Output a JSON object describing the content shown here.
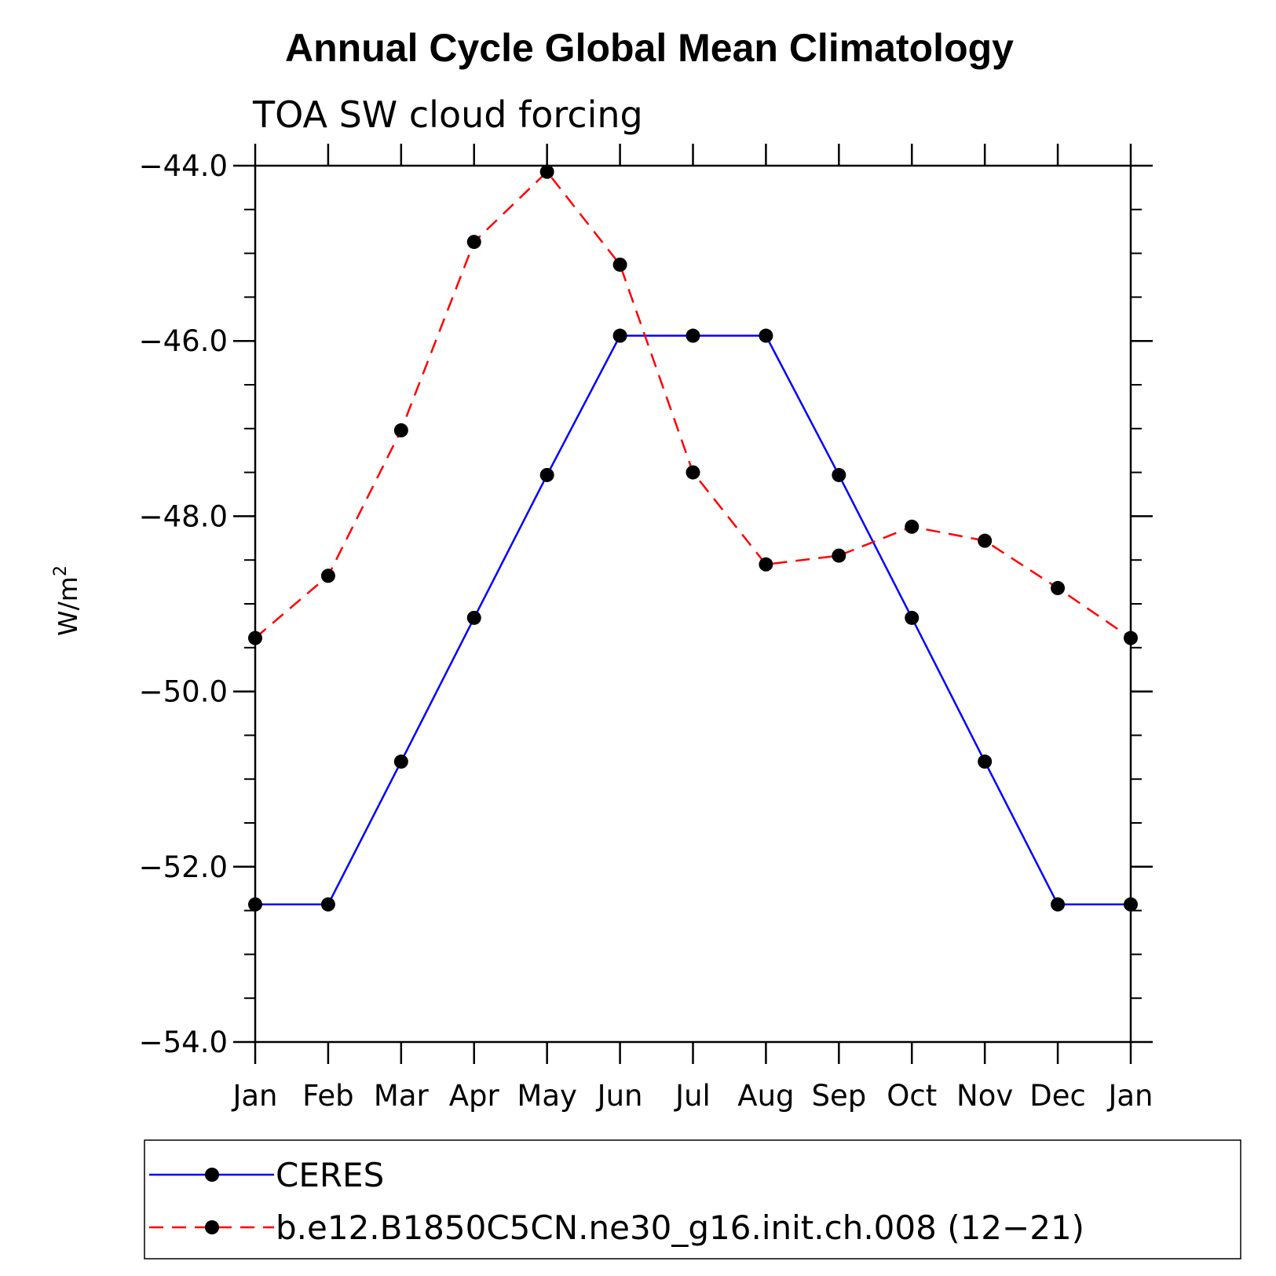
{
  "chart_data": {
    "type": "line",
    "title": "Annual Cycle Global Mean Climatology",
    "subtitle": "TOA SW cloud forcing",
    "ylabel": "W/m",
    "ylabel_sup": "2",
    "xlabel": "",
    "categories": [
      "Jan",
      "Feb",
      "Mar",
      "Apr",
      "May",
      "Jun",
      "Jul",
      "Aug",
      "Sep",
      "Oct",
      "Nov",
      "Dec",
      "Jan"
    ],
    "ylim": [
      -54.0,
      -44.0
    ],
    "yticks": [
      -44.0,
      -46.0,
      -48.0,
      -50.0,
      -52.0,
      -54.0
    ],
    "ytick_labels": [
      "−44.0",
      "−46.0",
      "−48.0",
      "−50.0",
      "−52.0",
      "−54.0"
    ],
    "grid": false,
    "legend_position": "bottom",
    "series": [
      {
        "name": "CERES",
        "color": "#0000ff",
        "dash": "solid",
        "marker": "filled-circle",
        "values": [
          -52.43,
          -52.43,
          -50.8,
          -49.16,
          -47.53,
          -45.94,
          -45.94,
          -45.94,
          -47.53,
          -49.16,
          -50.8,
          -52.43,
          -52.43
        ]
      },
      {
        "name": "b.e12.B1850C5CN.ne30_g16.init.ch.008 (12−21)",
        "color": "#ff0000",
        "dash": "dashed",
        "marker": "filled-circle",
        "values": [
          -49.39,
          -48.68,
          -47.02,
          -44.87,
          -44.07,
          -45.13,
          -47.5,
          -48.55,
          -48.45,
          -48.12,
          -48.28,
          -48.82,
          -49.39
        ]
      }
    ]
  }
}
